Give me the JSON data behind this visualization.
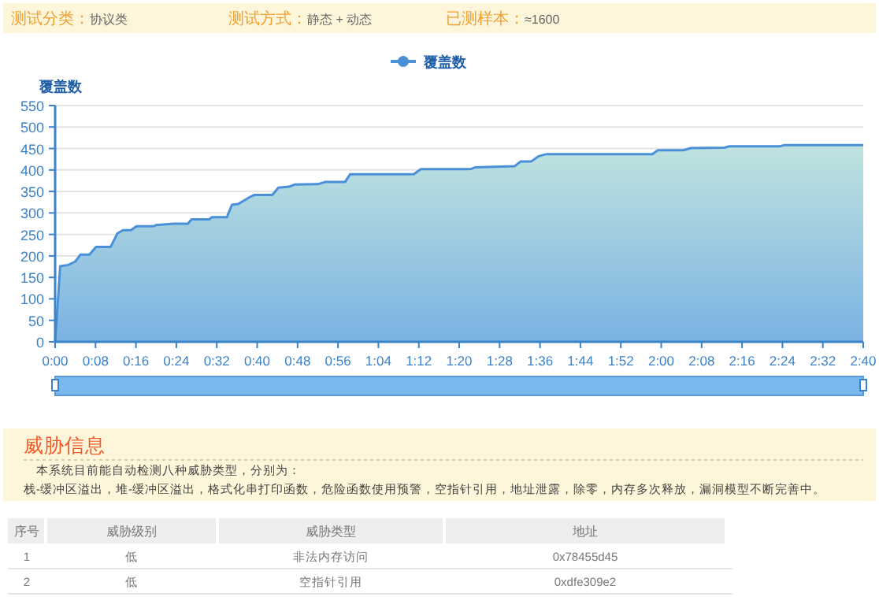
{
  "chart_data": [
    {
      "type": "area",
      "ylabel": "覆盖数",
      "legend": "top",
      "grid": "y",
      "xlim": [
        0,
        160
      ],
      "ylim": [
        0,
        550
      ],
      "xticks": [
        {
          "value": 0,
          "label": "0:00"
        },
        {
          "value": 8,
          "label": "0:08"
        },
        {
          "value": 16,
          "label": "0:16"
        },
        {
          "value": 24,
          "label": "0:24"
        },
        {
          "value": 32,
          "label": "0:32"
        },
        {
          "value": 40,
          "label": "0:40"
        },
        {
          "value": 48,
          "label": "0:48"
        },
        {
          "value": 56,
          "label": "0:56"
        },
        {
          "value": 64,
          "label": "1:04"
        },
        {
          "value": 72,
          "label": "1:12"
        },
        {
          "value": 80,
          "label": "1:20"
        },
        {
          "value": 88,
          "label": "1:28"
        },
        {
          "value": 96,
          "label": "1:36"
        },
        {
          "value": 104,
          "label": "1:44"
        },
        {
          "value": 112,
          "label": "1:52"
        },
        {
          "value": 120,
          "label": "2:00"
        },
        {
          "value": 128,
          "label": "2:08"
        },
        {
          "value": 136,
          "label": "2:16"
        },
        {
          "value": 144,
          "label": "2:24"
        },
        {
          "value": 152,
          "label": "2:32"
        },
        {
          "value": 160,
          "label": "2:40"
        }
      ],
      "yticks": [
        0,
        50,
        100,
        150,
        200,
        250,
        300,
        350,
        400,
        450,
        500,
        550
      ],
      "x": [
        0,
        1,
        2.6,
        4,
        5,
        6.8,
        8.1,
        11,
        12.3,
        13.4,
        15,
        16.1,
        19.5,
        20,
        23.5,
        26.3,
        27,
        30.5,
        31,
        34,
        35,
        36.3,
        38.4,
        39.5,
        43,
        44.2,
        46.3,
        47.4,
        52,
        53.4,
        57.4,
        58.4,
        71,
        72.4,
        82.3,
        83.1,
        91,
        92.2,
        94.3,
        95.7,
        97.3,
        118.3,
        119.3,
        124.4,
        125.9,
        132.5,
        133.5,
        143.5,
        144.4,
        160
      ],
      "series": [
        {
          "name": "覆盖数",
          "color": "#4a90d9",
          "values": [
            0,
            176,
            179,
            187,
            203,
            203,
            221,
            221,
            252,
            260,
            260,
            269,
            269,
            272,
            275,
            275,
            285,
            285,
            290,
            290,
            319,
            321,
            336,
            342,
            342,
            359,
            361,
            366,
            367,
            372,
            372,
            390,
            390,
            402,
            402,
            406,
            409,
            420,
            420,
            432,
            437,
            437,
            446,
            446,
            451,
            452,
            455,
            455,
            458,
            458
          ]
        }
      ]
    },
    {
      "type": "other",
      "annotations": [
        "测试分类：",
        "协议类",
        "测试方式：",
        "静态 + 动态",
        "已测样本：",
        "≈1600",
        "威胁信息",
        "本系统目前能自动检测八种威胁类型，分别为：",
        "栈-缓冲区溢出，堆-缓冲区溢出，格式化串打印函数，危险函数使用预警，空指针引用，地址泄露，除零，内存多次释放，漏洞模型不断完善中。",
        "序号",
        "威胁级别",
        "威胁类型",
        "地址",
        "1",
        "低",
        "非法内存访问",
        "0x78455d45",
        "2",
        "低",
        "空指针引用",
        "0xdfe309e2"
      ]
    }
  ]
}
